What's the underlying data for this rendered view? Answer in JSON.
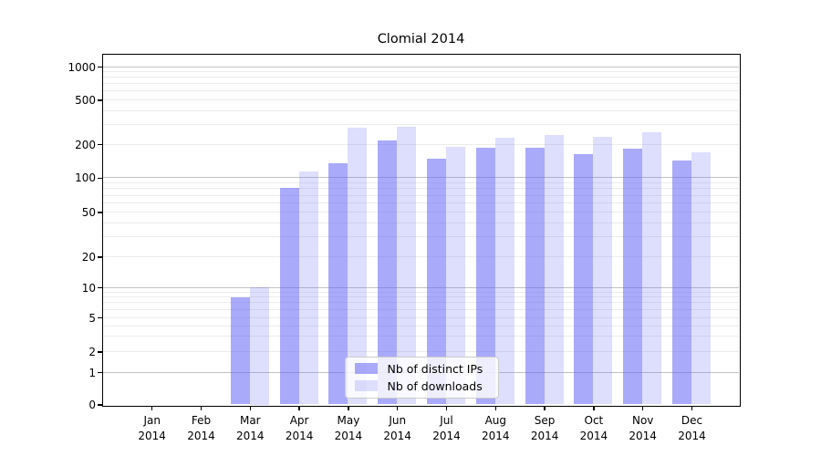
{
  "title": "Clomial 2014",
  "chart_data": {
    "type": "bar",
    "title": "Clomial 2014",
    "categories": [
      "Jan",
      "Feb",
      "Mar",
      "Apr",
      "May",
      "Jun",
      "Jul",
      "Aug",
      "Sep",
      "Oct",
      "Nov",
      "Dec"
    ],
    "year_label": "2014",
    "series": [
      {
        "name": "Nb of distinct IPs",
        "color": "rgba(101,101,246,0.55)",
        "values": [
          0,
          0,
          8,
          82,
          135,
          217,
          148,
          187,
          185,
          163,
          183,
          143
        ]
      },
      {
        "name": "Nb of downloads",
        "color": "rgba(101,101,246,0.215)",
        "values": [
          0,
          0,
          10,
          114,
          280,
          288,
          190,
          228,
          243,
          232,
          254,
          168
        ]
      }
    ],
    "yscale": "symlog",
    "ylim": [
      0,
      1300
    ],
    "yticks": [
      0,
      1,
      2,
      5,
      10,
      20,
      50,
      100,
      200,
      500,
      1000
    ],
    "minor_gridline_values": [
      2,
      3,
      4,
      5,
      6,
      7,
      8,
      9,
      20,
      30,
      40,
      50,
      60,
      70,
      80,
      90,
      200,
      300,
      400,
      500,
      600,
      700,
      800,
      900
    ],
    "major_gridline_values": [
      1,
      10,
      100,
      1000
    ],
    "grid": true,
    "legend_position": "lower center inside",
    "colors": {
      "grid_minor": "#ececec",
      "grid_major": "#c3c3c3",
      "spine": "#000000",
      "background": "#ffffff"
    }
  }
}
